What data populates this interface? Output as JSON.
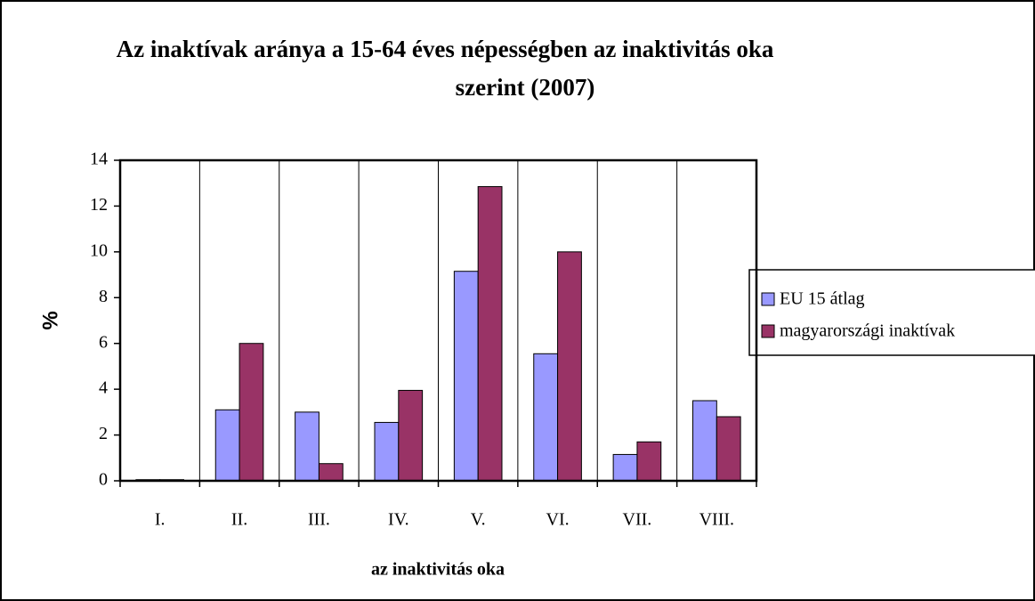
{
  "chart_data": {
    "type": "bar",
    "title": [
      "Az inaktívak aránya a 15-64 éves népességben az inaktivitás oka",
      "szerint (2007)"
    ],
    "x_label": "az inaktivitás oka",
    "y_label": "%",
    "categories": [
      "I.",
      "II.",
      "III.",
      "IV.",
      "V.",
      "VI.",
      "VII.",
      "VIII."
    ],
    "series": [
      {
        "name": "EU 15 átlag",
        "color": "#9999ff",
        "values": [
          0.05,
          3.1,
          3.0,
          2.55,
          9.15,
          5.55,
          1.15,
          3.5
        ]
      },
      {
        "name": "magyarországi inaktívak",
        "color": "#993366",
        "values": [
          0.05,
          6.0,
          0.75,
          3.95,
          12.85,
          10.0,
          1.7,
          2.8
        ]
      }
    ],
    "ylim": [
      0,
      14
    ],
    "yticks": [
      0,
      2,
      4,
      6,
      8,
      10,
      12,
      14
    ],
    "grid": true,
    "legend": "right"
  }
}
